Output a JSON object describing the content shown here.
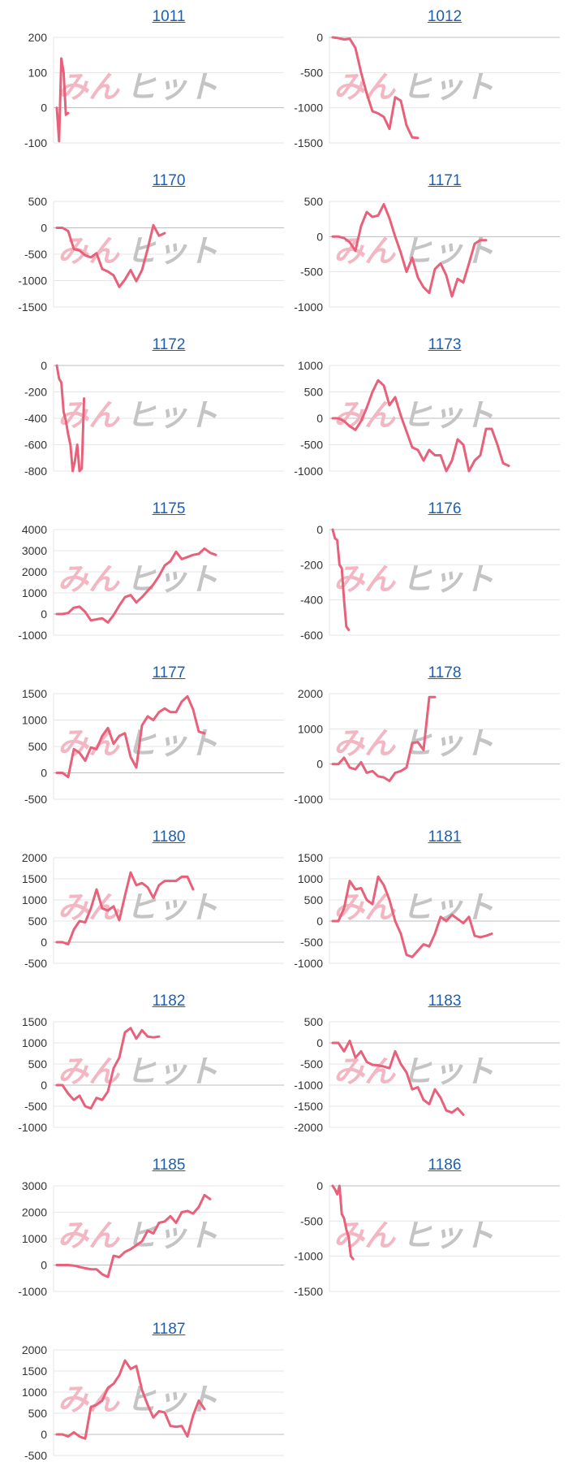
{
  "colors": {
    "line": "#e8607a",
    "grid": "#e6e6e6",
    "zero": "#bdbdbd",
    "title": "#1a5fb4",
    "watermark_pink": "#f2b7c2",
    "watermark_gray": "#c4c4c4"
  },
  "watermark": {
    "part1": "みん",
    "part2": "ヒット"
  },
  "chart_data": [
    {
      "title": "1011",
      "type": "line",
      "yticks": [
        200,
        100,
        0,
        -100
      ],
      "ylim": [
        -100,
        200
      ],
      "n_slots": 100,
      "y": [
        0,
        -95,
        140,
        100,
        -20,
        -15
      ]
    },
    {
      "title": "1012",
      "type": "line",
      "yticks": [
        0,
        -500,
        -1000,
        -1500
      ],
      "ylim": [
        -1500,
        0
      ],
      "n_slots": 40,
      "y": [
        0,
        -10,
        -30,
        -20,
        -150,
        -500,
        -800,
        -1050,
        -1080,
        -1130,
        -1300,
        -850,
        -900,
        -1250,
        -1420,
        -1430
      ]
    },
    {
      "title": "1170",
      "type": "line",
      "yticks": [
        500,
        0,
        -500,
        -1000,
        -1500
      ],
      "ylim": [
        -1500,
        500
      ],
      "n_slots": 40,
      "y": [
        0,
        0,
        -60,
        -400,
        -430,
        -520,
        -560,
        -480,
        -780,
        -830,
        -900,
        -1120,
        -980,
        -800,
        -1010,
        -800,
        -400,
        50,
        -150,
        -100
      ]
    },
    {
      "title": "1171",
      "type": "line",
      "yticks": [
        500,
        0,
        -500,
        -1000
      ],
      "ylim": [
        -1000,
        500
      ],
      "n_slots": 40,
      "y": [
        0,
        0,
        -20,
        -80,
        -200,
        150,
        350,
        280,
        300,
        460,
        260,
        0,
        -230,
        -500,
        -300,
        -580,
        -720,
        -800,
        -460,
        -380,
        -550,
        -850,
        -600,
        -650,
        -380,
        -100,
        -50,
        -50
      ]
    },
    {
      "title": "1172",
      "type": "line",
      "yticks": [
        0,
        -200,
        -400,
        -600,
        -800
      ],
      "ylim": [
        -800,
        0
      ],
      "n_slots": 100,
      "y": [
        0,
        -100,
        -130,
        -350,
        -420,
        -520,
        -600,
        -800,
        -720,
        -600,
        -800,
        -780,
        -250
      ]
    },
    {
      "title": "1173",
      "type": "line",
      "yticks": [
        1000,
        500,
        0,
        -500,
        -1000
      ],
      "ylim": [
        -1000,
        1000
      ],
      "n_slots": 40,
      "y": [
        0,
        0,
        -50,
        -150,
        -220,
        -50,
        200,
        500,
        720,
        620,
        250,
        400,
        50,
        -250,
        -550,
        -600,
        -800,
        -600,
        -700,
        -700,
        -1000,
        -800,
        -400,
        -500,
        -1000,
        -800,
        -700,
        -200,
        -200,
        -500,
        -850,
        -900
      ]
    },
    {
      "title": "1175",
      "type": "line",
      "yticks": [
        4000,
        3000,
        2000,
        1000,
        0,
        -1000
      ],
      "ylim": [
        -1000,
        4000
      ],
      "n_slots": 40,
      "y": [
        0,
        0,
        50,
        300,
        350,
        100,
        -300,
        -250,
        -200,
        -400,
        -50,
        400,
        800,
        900,
        550,
        800,
        1100,
        1400,
        1800,
        2300,
        2500,
        2950,
        2600,
        2700,
        2800,
        2850,
        3100,
        2900,
        2800
      ]
    },
    {
      "title": "1176",
      "type": "line",
      "yticks": [
        0,
        -200,
        -400,
        -600
      ],
      "ylim": [
        -600,
        0
      ],
      "n_slots": 100,
      "y": [
        0,
        -50,
        -60,
        -200,
        -220,
        -400,
        -550,
        -570
      ]
    },
    {
      "title": "1177",
      "type": "line",
      "yticks": [
        1500,
        1000,
        500,
        0,
        -500
      ],
      "ylim": [
        -500,
        1500
      ],
      "n_slots": 40,
      "y": [
        0,
        0,
        -80,
        450,
        380,
        230,
        480,
        450,
        700,
        850,
        550,
        700,
        750,
        300,
        100,
        900,
        1070,
        1000,
        1150,
        1220,
        1150,
        1150,
        1350,
        1450,
        1200,
        780,
        750
      ]
    },
    {
      "title": "1178",
      "type": "line",
      "yticks": [
        2000,
        1000,
        0,
        -1000
      ],
      "ylim": [
        -1000,
        2000
      ],
      "n_slots": 40,
      "y": [
        0,
        0,
        180,
        -100,
        -150,
        50,
        -250,
        -200,
        -350,
        -380,
        -480,
        -250,
        -200,
        -100,
        600,
        620,
        400,
        1900,
        1900
      ]
    },
    {
      "title": "1180",
      "type": "line",
      "yticks": [
        2000,
        1500,
        1000,
        500,
        0,
        -500
      ],
      "ylim": [
        -500,
        2000
      ],
      "n_slots": 40,
      "y": [
        0,
        0,
        -50,
        300,
        500,
        470,
        800,
        1250,
        800,
        750,
        850,
        520,
        1100,
        1650,
        1350,
        1400,
        1300,
        1050,
        1350,
        1450,
        1450,
        1450,
        1550,
        1550,
        1250
      ]
    },
    {
      "title": "1181",
      "type": "line",
      "yticks": [
        1500,
        1000,
        500,
        0,
        -500,
        -1000
      ],
      "ylim": [
        -1000,
        1500
      ],
      "n_slots": 40,
      "y": [
        0,
        0,
        300,
        950,
        750,
        780,
        500,
        400,
        1050,
        850,
        500,
        0,
        -300,
        -800,
        -850,
        -700,
        -550,
        -600,
        -300,
        100,
        0,
        150,
        50,
        -50,
        100,
        -350,
        -380,
        -350,
        -300
      ]
    },
    {
      "title": "1182",
      "type": "line",
      "yticks": [
        1500,
        1000,
        500,
        0,
        -500,
        -1000
      ],
      "ylim": [
        -1000,
        1500
      ],
      "n_slots": 40,
      "y": [
        0,
        0,
        -200,
        -350,
        -250,
        -500,
        -550,
        -300,
        -350,
        -150,
        400,
        650,
        1250,
        1350,
        1100,
        1300,
        1150,
        1130,
        1150
      ]
    },
    {
      "title": "1183",
      "type": "line",
      "yticks": [
        500,
        0,
        -500,
        -1000,
        -1500,
        -2000
      ],
      "ylim": [
        -2000,
        500
      ],
      "n_slots": 40,
      "y": [
        0,
        0,
        -200,
        50,
        -350,
        -200,
        -450,
        -520,
        -530,
        -560,
        -600,
        -200,
        -500,
        -700,
        -1100,
        -1050,
        -1350,
        -1450,
        -1100,
        -1300,
        -1600,
        -1650,
        -1550,
        -1700
      ]
    },
    {
      "title": "1185",
      "type": "line",
      "yticks": [
        3000,
        2000,
        1000,
        0,
        -1000
      ],
      "ylim": [
        -1000,
        3000
      ],
      "n_slots": 40,
      "y": [
        0,
        0,
        0,
        -20,
        -70,
        -120,
        -160,
        -160,
        -350,
        -450,
        350,
        300,
        500,
        600,
        750,
        900,
        1300,
        1200,
        1600,
        1650,
        1850,
        1600,
        2000,
        2050,
        1950,
        2200,
        2650,
        2500
      ]
    },
    {
      "title": "1186",
      "type": "line",
      "yticks": [
        0,
        -500,
        -1000,
        -1500
      ],
      "ylim": [
        -1500,
        0
      ],
      "n_slots": 100,
      "y": [
        0,
        -50,
        -120,
        0,
        -400,
        -460,
        -620,
        -720,
        -1000,
        -1040
      ]
    },
    {
      "title": "1187",
      "type": "line",
      "yticks": [
        2000,
        1500,
        1000,
        500,
        0,
        -500
      ],
      "ylim": [
        -500,
        2000
      ],
      "n_slots": 40,
      "y": [
        0,
        0,
        -50,
        50,
        -50,
        -100,
        650,
        700,
        800,
        1100,
        1200,
        1400,
        1750,
        1550,
        1620,
        1050,
        700,
        400,
        550,
        520,
        200,
        180,
        200,
        -50,
        450,
        800,
        600
      ]
    }
  ]
}
